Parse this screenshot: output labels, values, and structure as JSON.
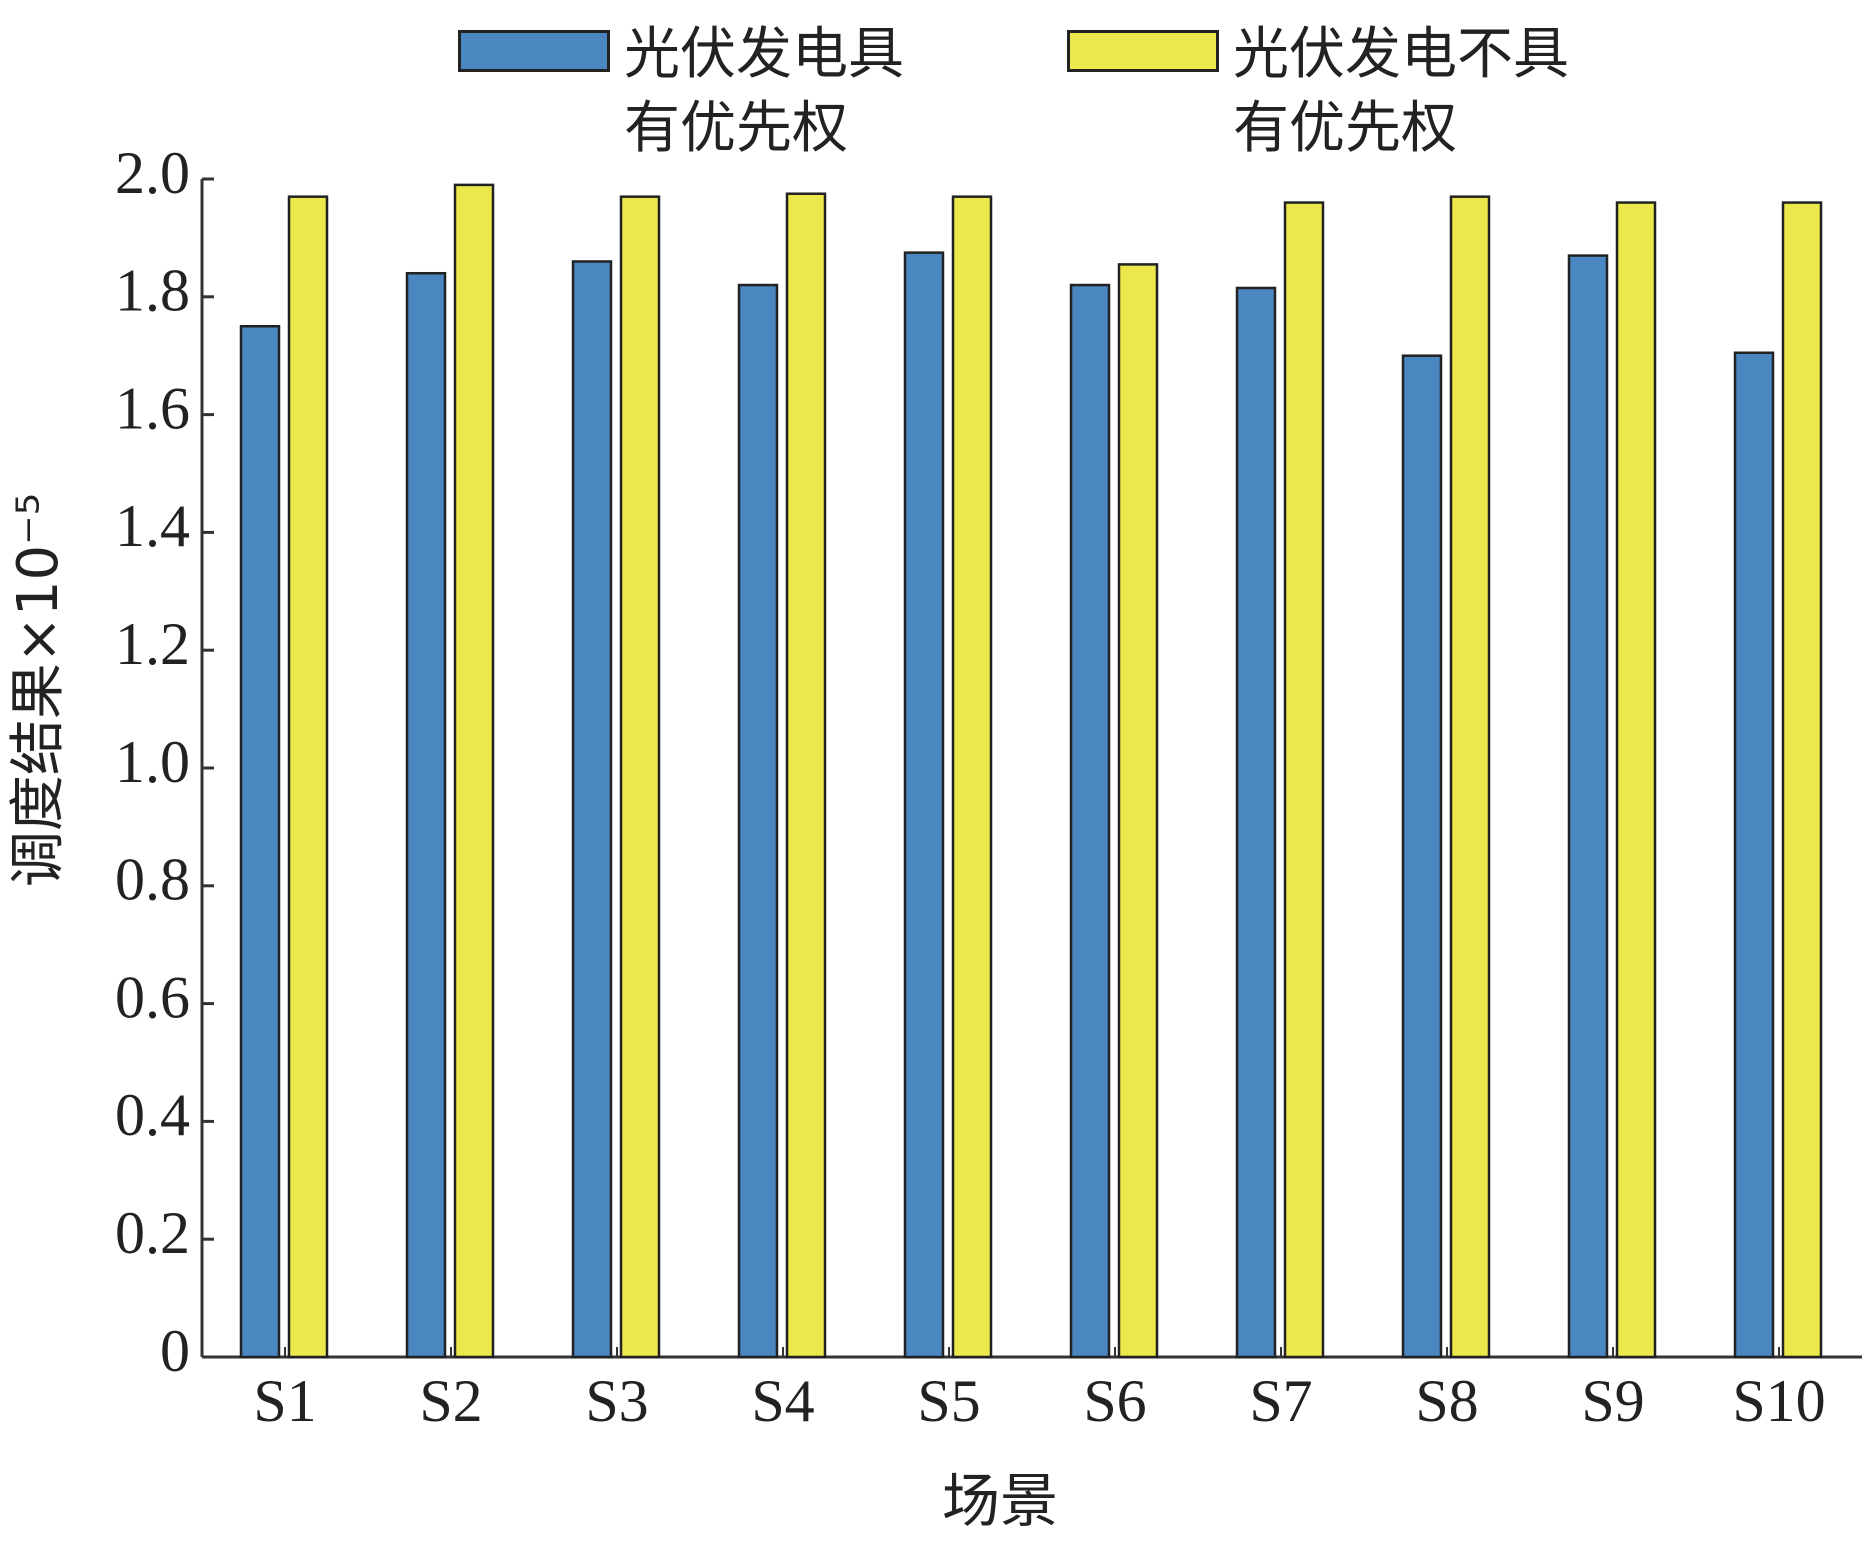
{
  "chart_data": {
    "type": "bar",
    "categories": [
      "S1",
      "S2",
      "S3",
      "S4",
      "S5",
      "S6",
      "S7",
      "S8",
      "S9",
      "S10"
    ],
    "series": [
      {
        "name": "光伏发电具有优先权",
        "color": "#4a86c0",
        "values": [
          1.75,
          1.84,
          1.86,
          1.82,
          1.875,
          1.82,
          1.815,
          1.7,
          1.87,
          1.705
        ]
      },
      {
        "name": "光伏发电不具有优先权",
        "color": "#eae84a",
        "values": [
          1.97,
          1.99,
          1.97,
          1.975,
          1.97,
          1.855,
          1.96,
          1.97,
          1.96,
          1.96
        ]
      }
    ],
    "x_label": "场景",
    "y_label": "调度结果×10⁻⁵",
    "ylim": [
      0,
      2
    ],
    "yticks": [
      0,
      0.2,
      0.4,
      0.6,
      0.8,
      {
        "value": 1,
        "label": "1.0"
      },
      1.2,
      1.4,
      1.6,
      1.8,
      {
        "value": 2,
        "label": "2.0"
      }
    ],
    "grid": false
  }
}
